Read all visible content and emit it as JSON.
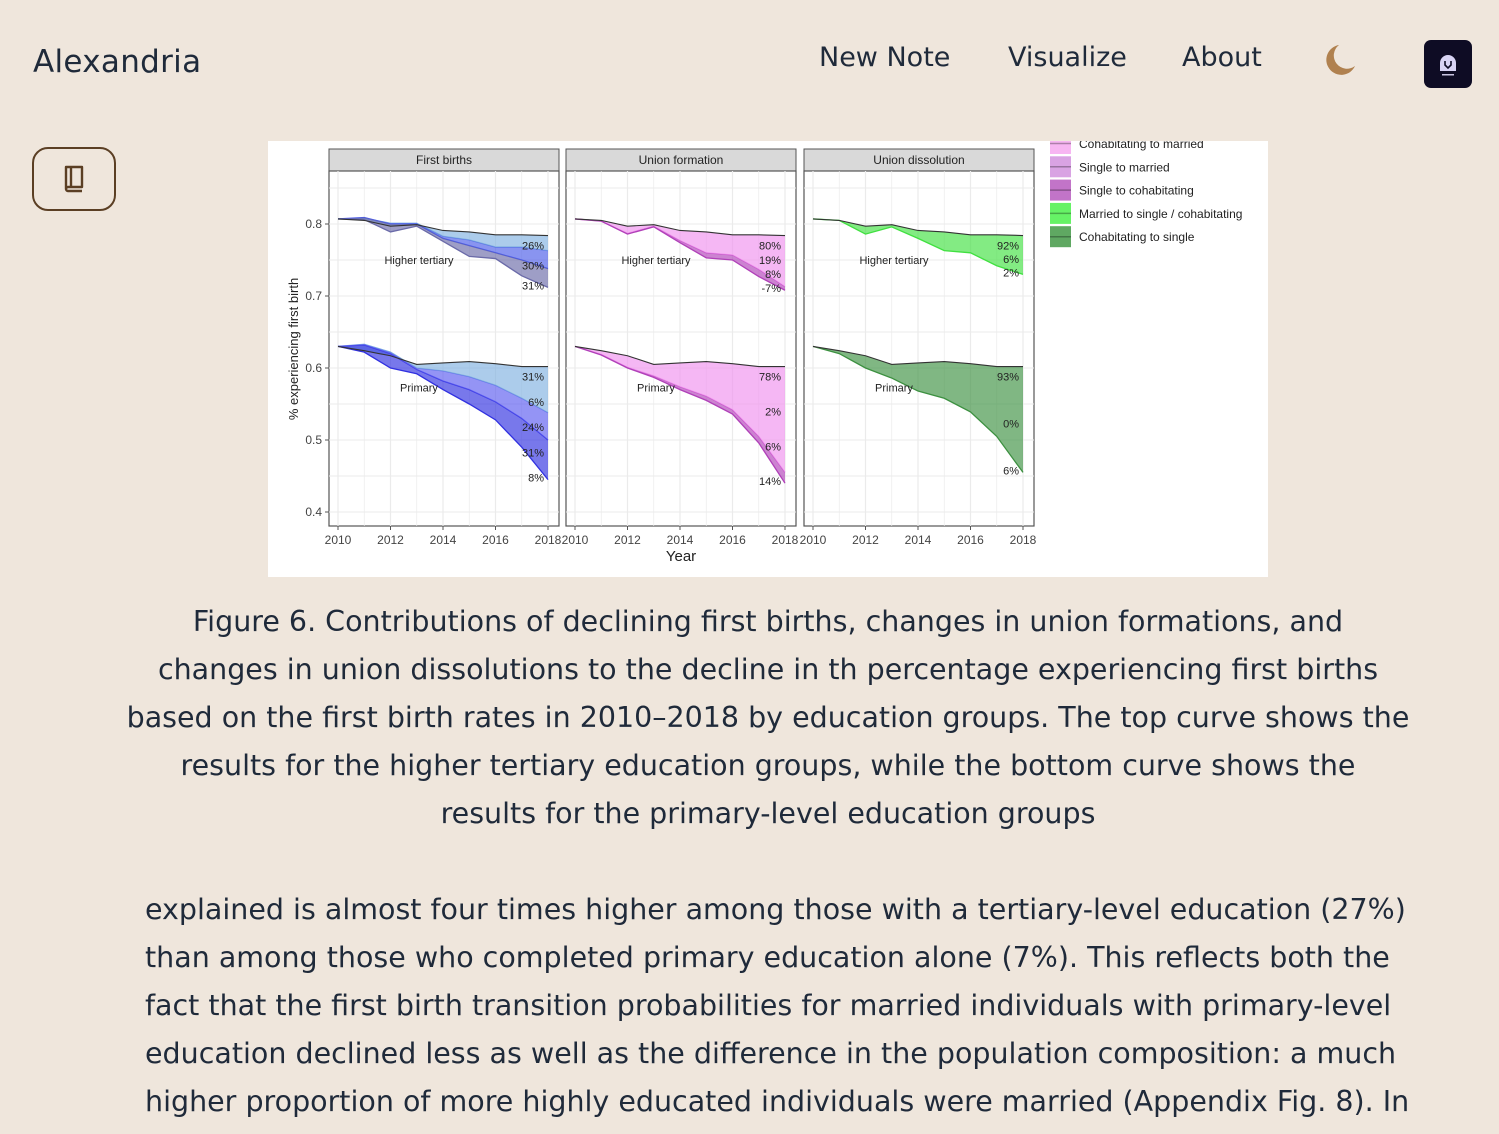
{
  "header": {
    "app_title": "Alexandria",
    "nav": [
      {
        "label": "New Note"
      },
      {
        "label": "Visualize"
      },
      {
        "label": "About"
      }
    ],
    "theme_toggle_icon": "moon-icon",
    "avatar_icon": "gitcitadel-logo",
    "accent_color": "#b0814f"
  },
  "sidebar": {
    "toggle_icon": "book-icon"
  },
  "figure": {
    "caption_lines": [
      "Figure 6. Contributions of declining first births, changes in union formations, and",
      "changes in union dissolutions to the decline in th percentage experiencing first births",
      "based on the first birth rates in 2010–2018 by education groups. The top curve shows the",
      "results for the higher tertiary education groups, while the bottom curve shows the",
      "results for the primary-level education groups"
    ]
  },
  "chart_data": {
    "type": "area",
    "ylabel": "% experiencing first birth",
    "xlabel": "Year",
    "ylim": [
      0.4,
      0.85
    ],
    "yticks": [
      "0.4",
      "0.5",
      "0.6",
      "0.7",
      "0.8"
    ],
    "xticks": [
      "2010",
      "2012",
      "2014",
      "2016",
      "2018"
    ],
    "x": [
      2010,
      2011,
      2012,
      2013,
      2014,
      2015,
      2016,
      2017,
      2018
    ],
    "grid": true,
    "legend_position": "top-right",
    "legend": [
      {
        "name": "Cohabitating to married",
        "color": "#f7b6f2"
      },
      {
        "name": "Single to married",
        "color": "#d9a3e3"
      },
      {
        "name": "Single to cohabitating",
        "color": "#c274c8"
      },
      {
        "name": "Married to single / cohabitating",
        "color": "#66f266"
      },
      {
        "name": "Cohabitating to single",
        "color": "#5fa862"
      }
    ],
    "panels": [
      {
        "title": "First births",
        "groups": [
          {
            "label": "Higher tertiary",
            "pct_labels": [
              "26%",
              "30%",
              "31%"
            ],
            "baseline": [
              0.807,
              0.805,
              0.797,
              0.799,
              0.791,
              0.789,
              0.785,
              0.785,
              0.784
            ],
            "series": [
              {
                "color": "#7fb0e0",
                "values": [
                  0.807,
                  0.808,
                  0.801,
                  0.801,
                  0.783,
                  0.778,
                  0.768,
                  0.768,
                  0.763
                ]
              },
              {
                "color": "#4a5ae8",
                "values": [
                  0.807,
                  0.809,
                  0.8,
                  0.8,
                  0.78,
                  0.77,
                  0.76,
                  0.75,
                  0.738
                ]
              },
              {
                "color": "#6a6aa8",
                "values": [
                  0.807,
                  0.806,
                  0.789,
                  0.797,
                  0.776,
                  0.755,
                  0.752,
                  0.728,
                  0.712
                ]
              }
            ]
          },
          {
            "label": "Primary",
            "pct_labels": [
              "31%",
              "6%",
              "24%",
              "31%",
              "8%"
            ],
            "baseline": [
              0.63,
              0.624,
              0.617,
              0.605,
              0.607,
              0.609,
              0.606,
              0.602,
              0.602
            ],
            "series": [
              {
                "color": "#7fb0e0",
                "values": [
                  0.63,
                  0.633,
                  0.622,
                  0.6,
                  0.596,
                  0.588,
                  0.576,
                  0.558,
                  0.538
                ]
              },
              {
                "color": "#5a5af0",
                "values": [
                  0.63,
                  0.632,
                  0.62,
                  0.598,
                  0.582,
                  0.57,
                  0.553,
                  0.53,
                  0.5
                ]
              },
              {
                "color": "#3030e0",
                "values": [
                  0.63,
                  0.622,
                  0.6,
                  0.592,
                  0.57,
                  0.55,
                  0.528,
                  0.49,
                  0.445
                ]
              }
            ]
          }
        ]
      },
      {
        "title": "Union formation",
        "groups": [
          {
            "label": "Higher tertiary",
            "pct_labels": [
              "80%",
              "19%",
              "8%",
              "-7%"
            ],
            "baseline": [
              0.807,
              0.805,
              0.797,
              0.799,
              0.791,
              0.789,
              0.785,
              0.785,
              0.784
            ],
            "series": [
              {
                "color": "#f090ee",
                "values": [
                  0.807,
                  0.804,
                  0.787,
                  0.797,
                  0.777,
                  0.76,
                  0.757,
                  0.737,
                  0.713
                ]
              },
              {
                "color": "#b040b8",
                "values": [
                  0.807,
                  0.804,
                  0.786,
                  0.796,
                  0.774,
                  0.753,
                  0.75,
                  0.727,
                  0.708
                ]
              }
            ]
          },
          {
            "label": "Primary",
            "pct_labels": [
              "78%",
              "2%",
              "6%",
              "14%"
            ],
            "baseline": [
              0.63,
              0.624,
              0.617,
              0.605,
              0.607,
              0.609,
              0.606,
              0.602,
              0.602
            ],
            "series": [
              {
                "color": "#f090ee",
                "values": [
                  0.63,
                  0.619,
                  0.601,
                  0.589,
                  0.574,
                  0.561,
                  0.542,
                  0.505,
                  0.455
                ]
              },
              {
                "color": "#b040b8",
                "values": [
                  0.63,
                  0.618,
                  0.6,
                  0.587,
                  0.57,
                  0.555,
                  0.536,
                  0.496,
                  0.44
                ]
              }
            ]
          }
        ]
      },
      {
        "title": "Union dissolution",
        "groups": [
          {
            "label": "Higher tertiary",
            "pct_labels": [
              "92%",
              "6%",
              "2%"
            ],
            "baseline": [
              0.807,
              0.805,
              0.797,
              0.799,
              0.791,
              0.789,
              0.785,
              0.785,
              0.784
            ],
            "series": [
              {
                "color": "#40e040",
                "values": [
                  0.807,
                  0.805,
                  0.786,
                  0.796,
                  0.78,
                  0.763,
                  0.76,
                  0.742,
                  0.73
                ]
              }
            ]
          },
          {
            "label": "Primary",
            "pct_labels": [
              "93%",
              "0%",
              "6%"
            ],
            "baseline": [
              0.63,
              0.624,
              0.617,
              0.605,
              0.607,
              0.609,
              0.606,
              0.602,
              0.602
            ],
            "series": [
              {
                "color": "#3c9040",
                "values": [
                  0.63,
                  0.62,
                  0.6,
                  0.586,
                  0.568,
                  0.558,
                  0.539,
                  0.505,
                  0.455
                ]
              }
            ]
          }
        ]
      }
    ]
  },
  "article": {
    "lines": [
      "explained is almost four times higher among those with a tertiary-level education (27%)",
      "than among those who completed primary education alone (7%). This reflects both the",
      "fact that the first birth transition probabilities for married individuals with primary-level",
      "education declined less as well as the difference in the population composition: a much",
      "higher proportion of more highly educated individuals were married (Appendix Fig. 8). In"
    ]
  }
}
